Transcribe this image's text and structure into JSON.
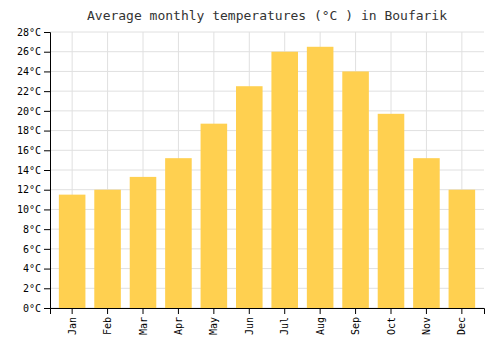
{
  "chart_data": {
    "type": "bar",
    "title": "Average monthly temperatures (°C ) in Boufarik",
    "categories": [
      "Jan",
      "Feb",
      "Mar",
      "Apr",
      "May",
      "Jun",
      "Jul",
      "Aug",
      "Sep",
      "Oct",
      "Nov",
      "Dec"
    ],
    "values": [
      11.5,
      12.0,
      13.3,
      15.2,
      18.7,
      22.5,
      26.0,
      26.5,
      24.0,
      19.7,
      15.2,
      12.0
    ],
    "color": "#FFD050",
    "ylim": [
      0,
      28
    ],
    "yticks": [
      {
        "value": 0,
        "label": "0°C"
      },
      {
        "value": 2,
        "label": "2°C"
      },
      {
        "value": 4,
        "label": "4°C"
      },
      {
        "value": 6,
        "label": "6°C"
      },
      {
        "value": 8,
        "label": "8°C"
      },
      {
        "value": 10,
        "label": "10°C"
      },
      {
        "value": 12,
        "label": "12°C"
      },
      {
        "value": 14,
        "label": "14°C"
      },
      {
        "value": 16,
        "label": "16°C"
      },
      {
        "value": 18,
        "label": "18°C"
      },
      {
        "value": 20,
        "label": "20°C"
      },
      {
        "value": 22,
        "label": "22°C"
      },
      {
        "value": 24,
        "label": "24°C"
      },
      {
        "value": 26,
        "label": "26°C"
      },
      {
        "value": 28,
        "label": "28°C"
      }
    ],
    "grid": true
  }
}
